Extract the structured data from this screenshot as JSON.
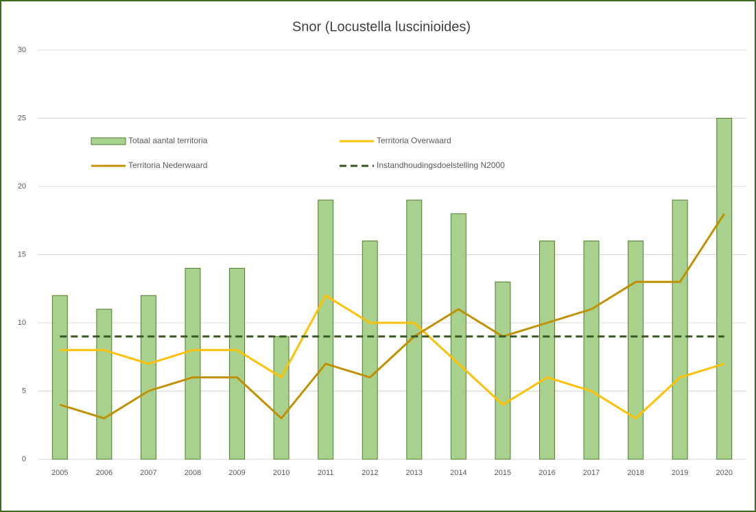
{
  "chart_data": {
    "type": "bar",
    "title": "Snor (Locustella luscinioides)",
    "categories": [
      "2005",
      "2006",
      "2007",
      "2008",
      "2009",
      "2010",
      "2011",
      "2012",
      "2013",
      "2014",
      "2015",
      "2016",
      "2017",
      "2018",
      "2019",
      "2020"
    ],
    "series": [
      {
        "name": "Totaal aantal territoria",
        "type": "bar",
        "color": "#a9d18e",
        "edge": "#4e7a2c",
        "values": [
          12,
          11,
          12,
          14,
          14,
          9,
          19,
          16,
          19,
          18,
          13,
          16,
          16,
          16,
          19,
          25
        ]
      },
      {
        "name": "Territoria Overwaard",
        "type": "line",
        "color": "#ffc000",
        "values": [
          8,
          8,
          7,
          8,
          8,
          6,
          12,
          10,
          10,
          7,
          4,
          6,
          5,
          3,
          6,
          7
        ]
      },
      {
        "name": "Territoria Nederwaard",
        "type": "line",
        "color": "#bf9000",
        "values": [
          4,
          3,
          5,
          6,
          6,
          3,
          7,
          6,
          9,
          11,
          9,
          10,
          11,
          13,
          13,
          18
        ]
      },
      {
        "name": "Instandhoudingsdoelstelling N2000",
        "type": "line",
        "dashed": true,
        "color": "#375623",
        "values": [
          9,
          9,
          9,
          9,
          9,
          9,
          9,
          9,
          9,
          9,
          9,
          9,
          9,
          9,
          9,
          9
        ]
      }
    ],
    "ylim": [
      0,
      30
    ],
    "yticks": [
      0,
      5,
      10,
      15,
      20,
      25,
      30
    ],
    "grid": true,
    "legend": "upper left"
  }
}
